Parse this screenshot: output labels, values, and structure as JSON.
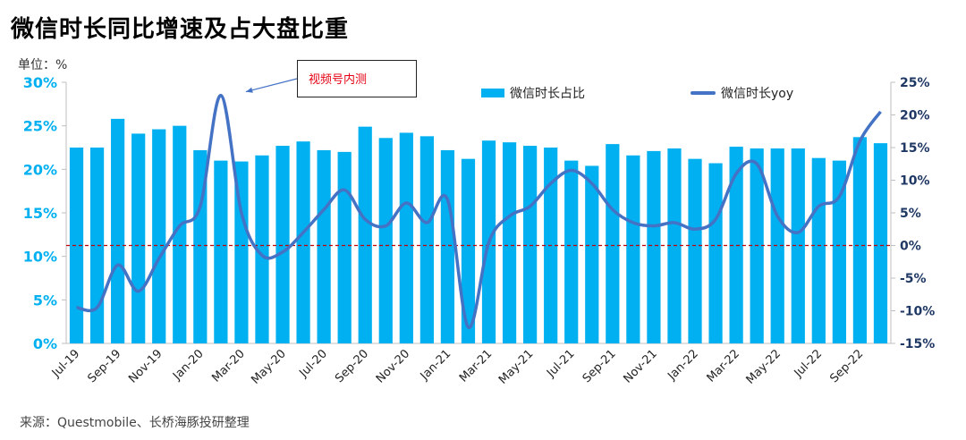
{
  "title": "微信时长同比增速及占大盘比重",
  "unit_label": "单位：%",
  "source": "来源：Questmobile、长桥海豚投研整理",
  "annotation": "视频号内测",
  "colors": {
    "bar": "#00b0f0",
    "line": "#4472c4",
    "left_axis": "#00b0f0",
    "right_axis": "#1f3864",
    "zero_line": "#c00000"
  },
  "chart_data": {
    "type": "bar",
    "categories": [
      "Jul-19",
      "Aug-19",
      "Sep-19",
      "Oct-19",
      "Nov-19",
      "Dec-19",
      "Jan-20",
      "Feb-20",
      "Mar-20",
      "Apr-20",
      "May-20",
      "Jun-20",
      "Jul-20",
      "Aug-20",
      "Sep-20",
      "Oct-20",
      "Nov-20",
      "Dec-20",
      "Jan-21",
      "Feb-21",
      "Mar-21",
      "Apr-21",
      "May-21",
      "Jun-21",
      "Jul-21",
      "Aug-21",
      "Sep-21",
      "Oct-21",
      "Nov-21",
      "Dec-21",
      "Jan-22",
      "Feb-22",
      "Mar-22",
      "Apr-22",
      "May-22",
      "Jun-22",
      "Jul-22",
      "Aug-22",
      "Sep-22",
      "Oct-22"
    ],
    "x_tick_labels": [
      "Jul-19",
      "Sep-19",
      "Nov-19",
      "Jan-20",
      "Mar-20",
      "May-20",
      "Jul-20",
      "Sep-20",
      "Nov-20",
      "Jan-21",
      "Mar-21",
      "May-21",
      "Jul-21",
      "Sep-21",
      "Nov-21",
      "Jan-22",
      "Mar-22",
      "May-22",
      "Jul-22",
      "Sep-22"
    ],
    "series": [
      {
        "name": "微信时长占比",
        "type": "bar",
        "axis": "left",
        "values": [
          22.5,
          22.5,
          25.8,
          24.1,
          24.6,
          25.0,
          22.2,
          21.0,
          20.9,
          21.6,
          22.7,
          23.2,
          22.2,
          22.0,
          24.9,
          23.6,
          24.2,
          23.8,
          22.2,
          21.2,
          23.3,
          23.1,
          22.7,
          22.5,
          21.0,
          20.4,
          22.9,
          21.6,
          22.1,
          22.4,
          21.2,
          20.7,
          22.6,
          22.4,
          22.4,
          22.4,
          21.3,
          21.0,
          23.7,
          23.0
        ]
      },
      {
        "name": "微信时长yoy",
        "type": "line",
        "axis": "right",
        "values": [
          -9.5,
          -9.5,
          -3.0,
          -7.0,
          -2.0,
          3.0,
          6.0,
          23.0,
          5.0,
          -1.5,
          -1.0,
          2.0,
          5.5,
          8.5,
          4.0,
          3.0,
          6.5,
          3.5,
          7.0,
          -12.5,
          0.5,
          4.5,
          6.0,
          9.5,
          11.5,
          9.5,
          5.5,
          3.5,
          3.0,
          3.5,
          2.5,
          4.0,
          11.0,
          12.5,
          4.5,
          2.0,
          6.0,
          7.5,
          16.0,
          20.5
        ]
      }
    ],
    "y_left": {
      "ticks": [
        "0%",
        "5%",
        "10%",
        "15%",
        "20%",
        "25%",
        "30%"
      ],
      "ylim": [
        0,
        30
      ]
    },
    "y_right": {
      "ticks": [
        "-15%",
        "-10%",
        "-5%",
        "0%",
        "5%",
        "10%",
        "15%",
        "20%",
        "25%"
      ],
      "ylim": [
        -15,
        25
      ]
    },
    "legend_position": "top-right"
  }
}
